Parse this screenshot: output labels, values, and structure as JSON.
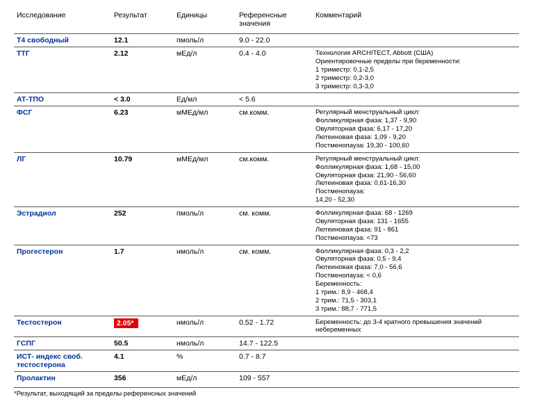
{
  "headers": {
    "name": "Исследование",
    "result": "Результат",
    "units": "Единицы",
    "ref": "Референсные значения",
    "comment": "Комментарий"
  },
  "rows": [
    {
      "name": "Т4 свободный",
      "result": "12.1",
      "flagged": false,
      "units": "пмоль/л",
      "ref": "9.0 - 22.0",
      "comment": ""
    },
    {
      "name": "ТТГ",
      "result": "2.12",
      "flagged": false,
      "units": "мЕд/л",
      "ref": "0.4 - 4.0",
      "comment": "Технология ARCHITECT, Abbott (США)\nОриентировочные пределы при беременности:\n1 триместр: 0,1-2,5\n2 триместр: 0,2-3,0\n3 триместр: 0,3-3,0"
    },
    {
      "name": "АТ-ТПО",
      "result": "< 3.0",
      "flagged": false,
      "units": "Ед/мл",
      "ref": "< 5.6",
      "comment": ""
    },
    {
      "name": "ФСГ",
      "result": "6.23",
      "flagged": false,
      "units": "мМЕд/мл",
      "ref": "см.комм.",
      "comment": "Регулярный менструальный цикл:\nФолликулярная фаза: 1,37 - 9,90\nОвуляторная фаза: 6,17 - 17,20\nЛютеиновая фаза: 1,09 - 9,20\nПостменопауза: 19,30 - 100,60"
    },
    {
      "name": "ЛГ",
      "result": "10.79",
      "flagged": false,
      "units": "мМЕд/мл",
      "ref": "см.комм.",
      "comment": "Регулярный менструальный цикл:\nФолликулярная фаза: 1,68 - 15,00\nОвуляторная фаза: 21,90 - 56,60\nЛютеиновая фаза: 0,61-16,30\nПостменопауза:\n14,20 - 52,30"
    },
    {
      "name": "Эстрадиол",
      "result": "252",
      "flagged": false,
      "units": "пмоль/л",
      "ref": "см. комм.",
      "comment": "Фолликулярная фаза: 68 - 1269\nОвуляторная фаза: 131 - 1655\nЛютеиновая фаза: 91 - 861\nПостменопауза: <73"
    },
    {
      "name": "Прогестерон",
      "result": "1.7",
      "flagged": false,
      "units": "нмоль/л",
      "ref": "см. комм.",
      "comment": "Фолликулярная фаза: 0,3 - 2,2\nОвуляторная фаза: 0,5 - 9,4\nЛютеиновая фаза: 7,0 - 56,6\nПостменопауза: < 0,6\nБеременность:\n1 трим.: 8,9 - 468,4\n2 трим.: 71,5 - 303,1\n3 трим.: 88,7 - 771,5"
    },
    {
      "name": "Тестостерон",
      "result": "2.05*",
      "flagged": true,
      "units": "нмоль/л",
      "ref": "0.52 - 1.72",
      "comment": "Беременность: до 3-4 кратного превышения значений небеременных"
    },
    {
      "name": "ГСПГ",
      "result": "50.5",
      "flagged": false,
      "units": "нмоль/л",
      "ref": "14.7 - 122.5",
      "comment": ""
    },
    {
      "name": "ИСТ- индекс своб. тестостерона",
      "result": "4.1",
      "flagged": false,
      "units": "%",
      "ref": "0.7 - 8.7",
      "comment": ""
    },
    {
      "name": "Пролактин",
      "result": "356",
      "flagged": false,
      "units": "мЕд/л",
      "ref": "109 - 557",
      "comment": ""
    }
  ],
  "footnote": "*Результат, выходящий за пределы референсных значений",
  "colors": {
    "link": "#003399",
    "flag_bg": "#E30000",
    "flag_text": "#FFFFFF",
    "border": "#555555"
  }
}
